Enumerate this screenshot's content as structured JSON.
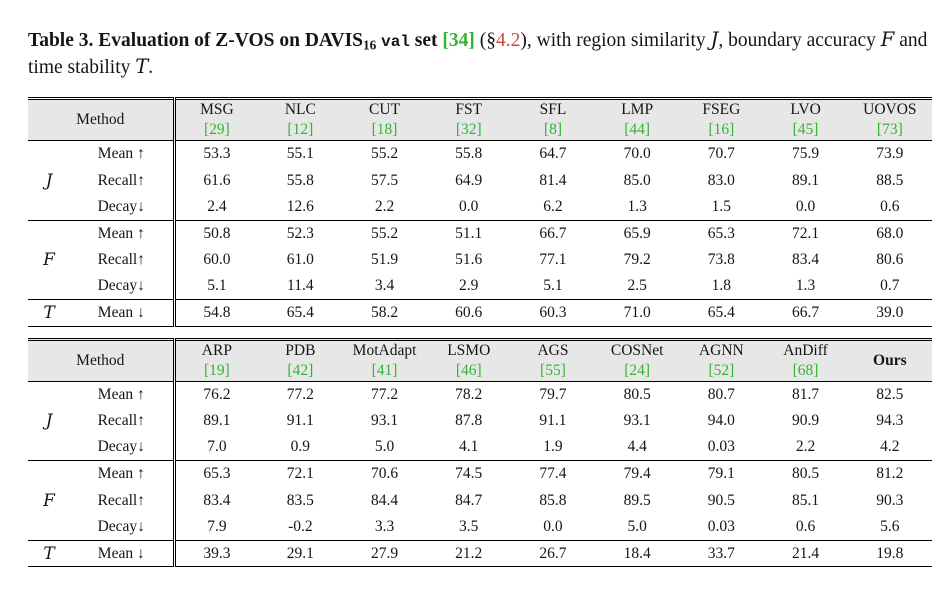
{
  "colors": {
    "citation_green": "#33b533",
    "section_red": "#c9493f",
    "header_gray": "#e7e7e7"
  },
  "caption": {
    "segments": [
      {
        "text": "Table 3. ",
        "style": "bold",
        "name": "caption-label",
        "interactable": false
      },
      {
        "text": "Evaluation of Z-VOS on DAVIS",
        "style": "bold",
        "name": "caption-text",
        "interactable": false
      },
      {
        "text": "16",
        "style": "bold sub",
        "name": "caption-subscript",
        "interactable": false
      },
      {
        "text": " ",
        "style": "bold",
        "name": "caption-text",
        "interactable": false
      },
      {
        "text": "val",
        "style": "bold mono",
        "name": "caption-code",
        "interactable": false
      },
      {
        "text": " set ",
        "style": "bold",
        "name": "caption-text",
        "interactable": false
      },
      {
        "text": "[34]",
        "style": "bold green",
        "name": "citation-link",
        "interactable": true
      },
      {
        "text": " (§",
        "style": "",
        "name": "caption-text",
        "interactable": false
      },
      {
        "text": "4.2",
        "style": "red",
        "name": "section-link",
        "interactable": true
      },
      {
        "text": "), with region similarity ",
        "style": "",
        "name": "caption-text",
        "interactable": false
      },
      {
        "text": "J",
        "style": "script",
        "name": "math-symbol-J",
        "interactable": false
      },
      {
        "text": ", boundary accuracy ",
        "style": "",
        "name": "caption-text",
        "interactable": false
      },
      {
        "text": "F",
        "style": "script",
        "name": "math-symbol-F",
        "interactable": false
      },
      {
        "text": " and time stability ",
        "style": "",
        "name": "caption-text",
        "interactable": false
      },
      {
        "text": "T",
        "style": "script",
        "name": "math-symbol-T",
        "interactable": false
      },
      {
        "text": ".",
        "style": "",
        "name": "caption-text",
        "interactable": false
      }
    ]
  },
  "tables": [
    {
      "method_label": "Method",
      "columns": [
        {
          "name": "MSG",
          "cite": "[29]"
        },
        {
          "name": "NLC",
          "cite": "[12]"
        },
        {
          "name": "CUT",
          "cite": "[18]"
        },
        {
          "name": "FST",
          "cite": "[32]"
        },
        {
          "name": "SFL",
          "cite": "[8]"
        },
        {
          "name": "LMP",
          "cite": "[44]"
        },
        {
          "name": "FSEG",
          "cite": "[16]"
        },
        {
          "name": "LVO",
          "cite": "[45]"
        },
        {
          "name": "UOVOS",
          "cite": "[73]"
        }
      ],
      "groups": [
        {
          "symbol": "J",
          "rows": [
            {
              "metric": "Mean ↑",
              "values": [
                "53.3",
                "55.1",
                "55.2",
                "55.8",
                "64.7",
                "70.0",
                "70.7",
                "75.9",
                "73.9"
              ],
              "bold": []
            },
            {
              "metric": "Recall↑",
              "values": [
                "61.6",
                "55.8",
                "57.5",
                "64.9",
                "81.4",
                "85.0",
                "83.0",
                "89.1",
                "88.5"
              ],
              "bold": []
            },
            {
              "metric": "Decay↓",
              "values": [
                "2.4",
                "12.6",
                "2.2",
                "0.0",
                "6.2",
                "1.3",
                "1.5",
                "0.0",
                "0.6"
              ],
              "bold": [
                3,
                7
              ]
            }
          ]
        },
        {
          "symbol": "F",
          "rows": [
            {
              "metric": "Mean ↑",
              "values": [
                "50.8",
                "52.3",
                "55.2",
                "51.1",
                "66.7",
                "65.9",
                "65.3",
                "72.1",
                "68.0"
              ],
              "bold": []
            },
            {
              "metric": "Recall↑",
              "values": [
                "60.0",
                "61.0",
                "51.9",
                "51.6",
                "77.1",
                "79.2",
                "73.8",
                "83.4",
                "80.6"
              ],
              "bold": []
            },
            {
              "metric": "Decay↓",
              "values": [
                "5.1",
                "11.4",
                "3.4",
                "2.9",
                "5.1",
                "2.5",
                "1.8",
                "1.3",
                "0.7"
              ],
              "bold": []
            }
          ]
        },
        {
          "symbol": "T",
          "rows": [
            {
              "metric": "Mean ↓",
              "values": [
                "54.8",
                "65.4",
                "58.2",
                "60.6",
                "60.3",
                "71.0",
                "65.4",
                "66.7",
                "39.0"
              ],
              "bold": []
            }
          ]
        }
      ]
    },
    {
      "method_label": "Method",
      "columns": [
        {
          "name": "ARP",
          "cite": "[19]"
        },
        {
          "name": "PDB",
          "cite": "[42]"
        },
        {
          "name": "MotAdapt",
          "cite": "[41]"
        },
        {
          "name": "LSMO",
          "cite": "[46]"
        },
        {
          "name": "AGS",
          "cite": "[55]"
        },
        {
          "name": "COSNet",
          "cite": "[24]"
        },
        {
          "name": "AGNN",
          "cite": "[52]"
        },
        {
          "name": "AnDiff",
          "cite": "[68]"
        },
        {
          "name": "Ours",
          "cite": null,
          "bold": true
        }
      ],
      "groups": [
        {
          "symbol": "J",
          "rows": [
            {
              "metric": "Mean ↑",
              "values": [
                "76.2",
                "77.2",
                "77.2",
                "78.2",
                "79.7",
                "80.5",
                "80.7",
                "81.7",
                "82.5"
              ],
              "bold": [
                8
              ]
            },
            {
              "metric": "Recall↑",
              "values": [
                "89.1",
                "91.1",
                "93.1",
                "87.8",
                "91.1",
                "93.1",
                "94.0",
                "90.9",
                "94.3"
              ],
              "bold": [
                8
              ]
            },
            {
              "metric": "Decay↓",
              "values": [
                "7.0",
                "0.9",
                "5.0",
                "4.1",
                "1.9",
                "4.4",
                "0.03",
                "2.2",
                "4.2"
              ],
              "bold": []
            }
          ]
        },
        {
          "symbol": "F",
          "rows": [
            {
              "metric": "Mean ↑",
              "values": [
                "65.3",
                "72.1",
                "70.6",
                "74.5",
                "77.4",
                "79.4",
                "79.1",
                "80.5",
                "81.2"
              ],
              "bold": [
                8
              ]
            },
            {
              "metric": "Recall↑",
              "values": [
                "83.4",
                "83.5",
                "84.4",
                "84.7",
                "85.8",
                "89.5",
                "90.5",
                "85.1",
                "90.3"
              ],
              "bold": [
                6
              ]
            },
            {
              "metric": "Decay↓",
              "values": [
                "7.9",
                "-0.2",
                "3.3",
                "3.5",
                "0.0",
                "5.0",
                "0.03",
                "0.6",
                "5.6"
              ],
              "bold": []
            }
          ]
        },
        {
          "symbol": "T",
          "rows": [
            {
              "metric": "Mean ↓",
              "values": [
                "39.3",
                "29.1",
                "27.9",
                "21.2",
                "26.7",
                "18.4",
                "33.7",
                "21.4",
                "19.8"
              ],
              "bold": [
                5
              ]
            }
          ]
        }
      ]
    }
  ]
}
